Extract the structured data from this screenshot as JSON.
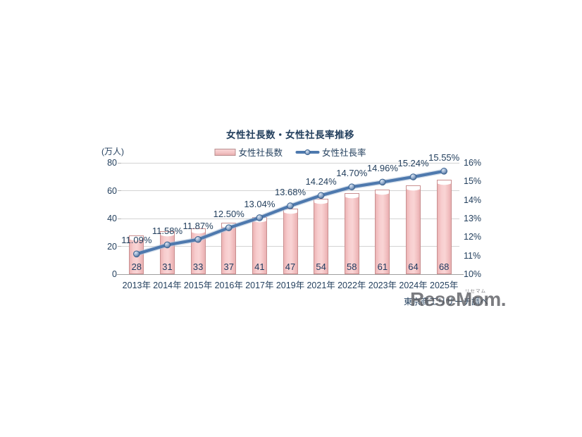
{
  "header": {
    "title": "女性社長数・女性社長率推移"
  },
  "legend": {
    "items": [
      {
        "label": "女性社長数",
        "swatch": "bar-swatch"
      },
      {
        "label": "女性社長率",
        "swatch": "line-swatch"
      }
    ]
  },
  "axes": {
    "left_unit": "(万人)"
  },
  "source": {
    "text": "東京商工リサーチ調べ"
  },
  "watermark": {
    "logo": "ReseMom.",
    "ruby": "リセマム"
  },
  "colors": {
    "bar_fill": "#f5c9ca",
    "bar_border": "#c98f90",
    "line": "#4e79ae",
    "marker": "#8fa9cc",
    "text": "#24405e",
    "grid": "#d4d4d4",
    "watermark_gray": "#56575c"
  },
  "chart_data": {
    "type": "bar",
    "title": "女性社長数・女性社長率推移",
    "categories": [
      "2013年",
      "2014年",
      "2015年",
      "2016年",
      "2017年",
      "2019年",
      "2021年",
      "2022年",
      "2023年",
      "2024年",
      "2025年"
    ],
    "series": [
      {
        "name": "女性社長数",
        "type": "bar",
        "axis": "left",
        "unit": "万人",
        "values": [
          28,
          31,
          33,
          37,
          41,
          47,
          54,
          58,
          61,
          64,
          68
        ]
      },
      {
        "name": "女性社長率",
        "type": "line",
        "axis": "right",
        "unit": "%",
        "values": [
          11.09,
          11.58,
          11.87,
          12.5,
          13.04,
          13.68,
          14.24,
          14.7,
          14.96,
          15.24,
          15.55
        ],
        "labels": [
          "11.09%",
          "11.58%",
          "11.87%",
          "12.50%",
          "13.04%",
          "13.68%",
          "14.24%",
          "14.70%",
          "14.96%",
          "15.24%",
          "15.55%"
        ]
      }
    ],
    "left_axis": {
      "label": "(万人)",
      "ticks": [
        0,
        20,
        40,
        60,
        80
      ],
      "range": [
        0,
        80
      ]
    },
    "right_axis": {
      "ticks": [
        "10%",
        "11%",
        "12%",
        "13%",
        "14%",
        "15%",
        "16%"
      ],
      "range": [
        10,
        16
      ]
    },
    "grid": true,
    "legend_position": "top"
  }
}
